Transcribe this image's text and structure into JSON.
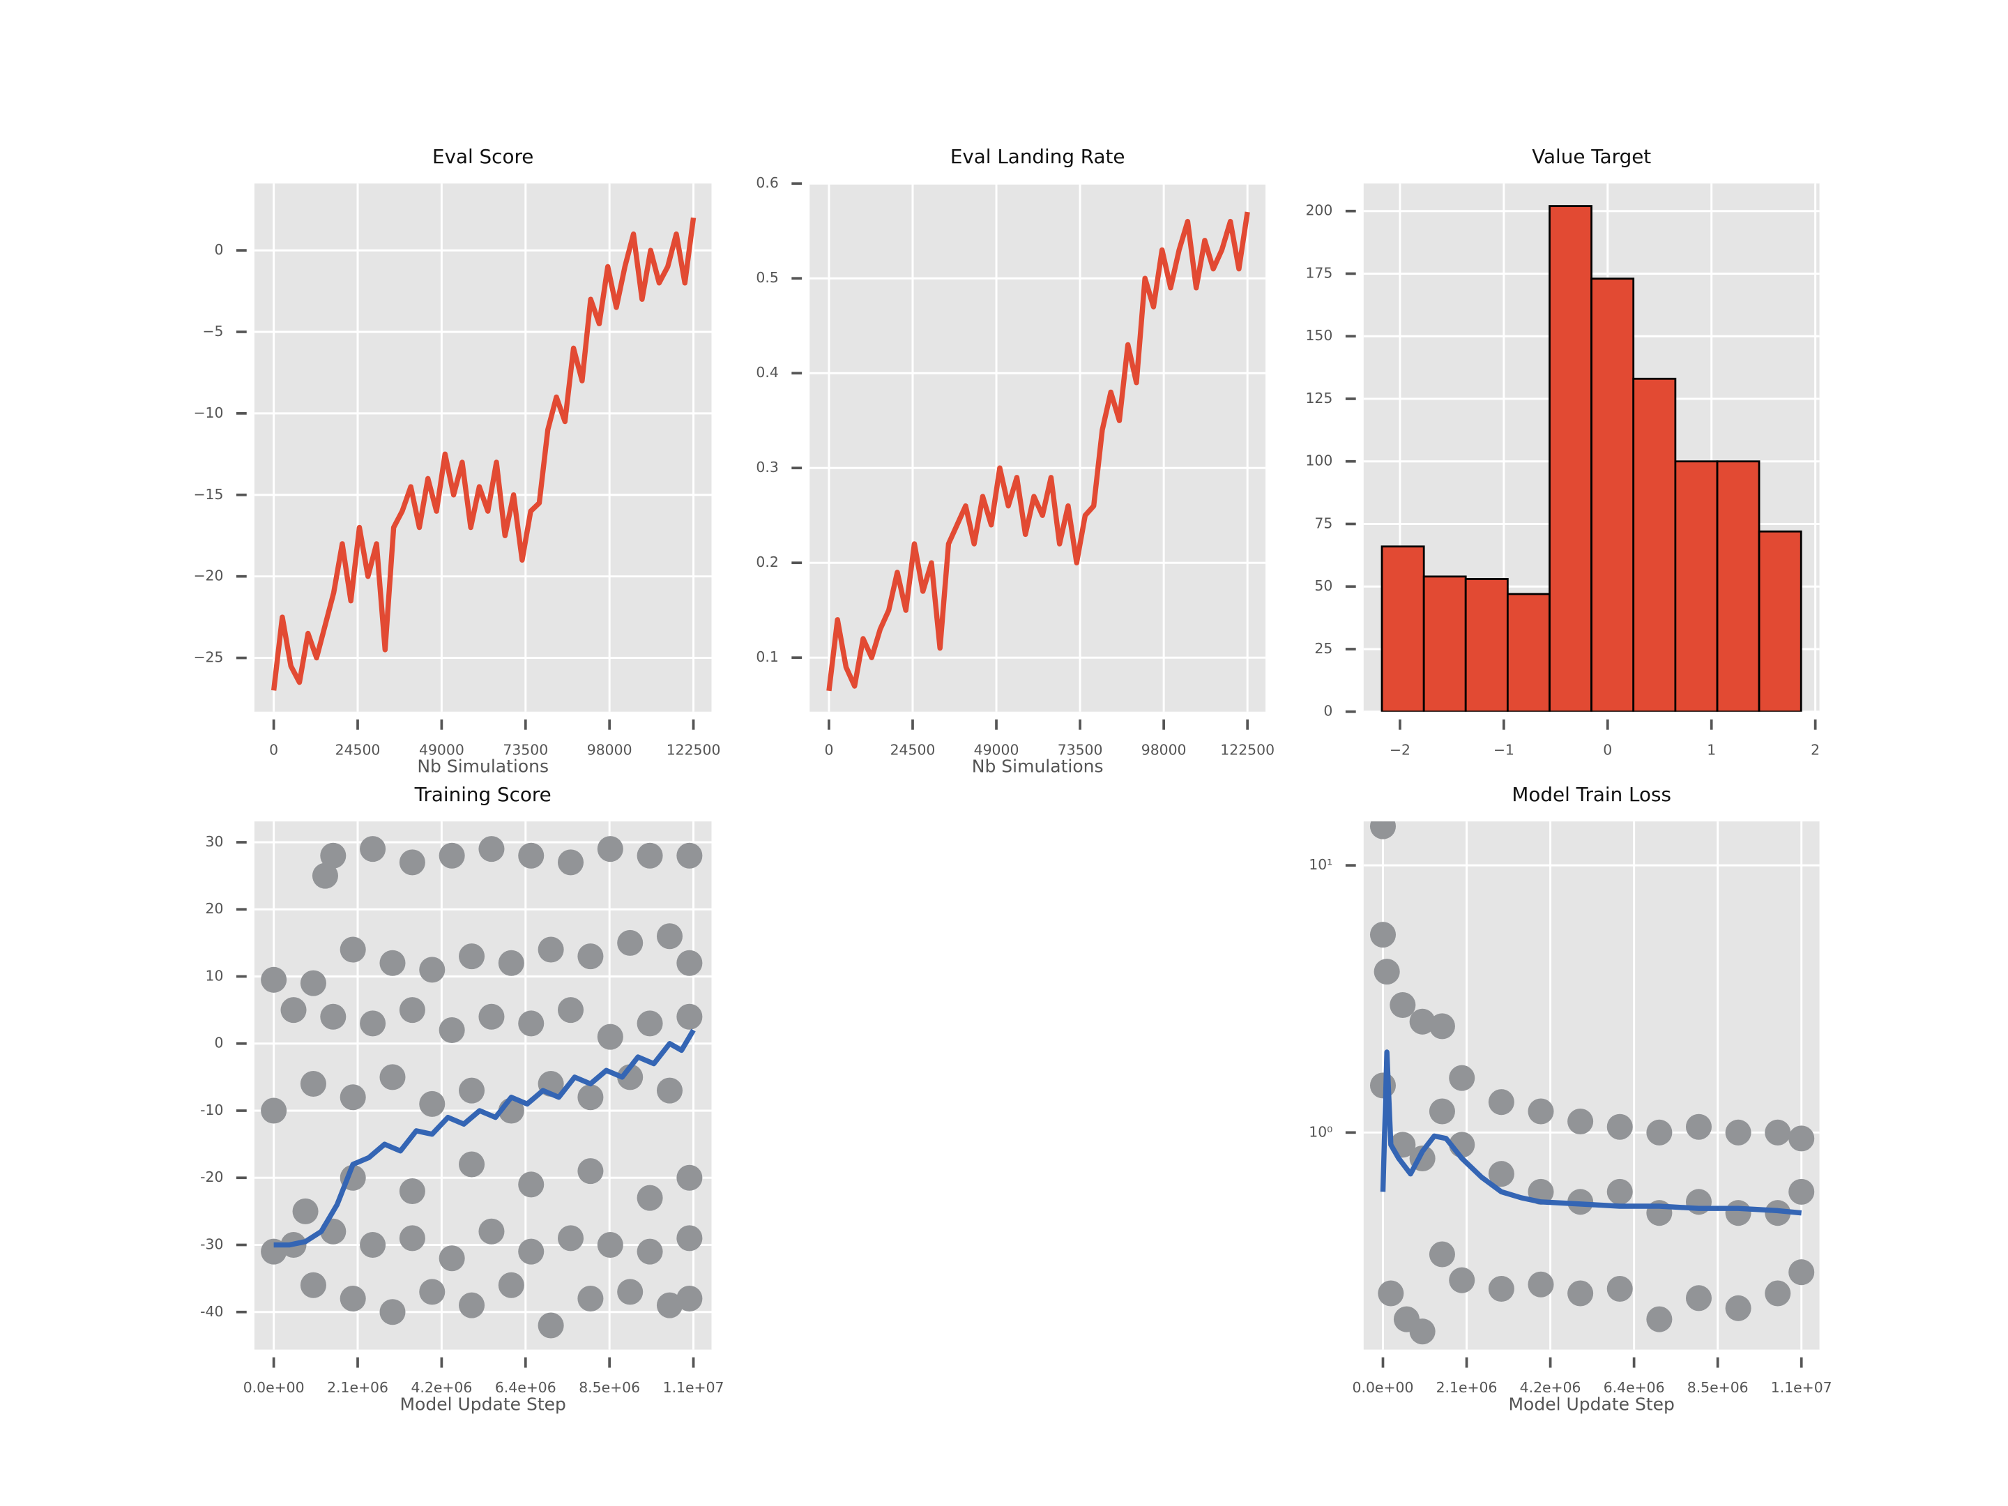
{
  "chart_data": [
    {
      "type": "line",
      "title": "Eval Score",
      "xlabel": "Nb Simulations",
      "color": "#e24a33",
      "grid": true,
      "x": [
        0,
        2500,
        5000,
        7500,
        10000,
        12500,
        15000,
        17500,
        20000,
        22500,
        25000,
        27500,
        30000,
        32500,
        35000,
        37500,
        40000,
        42500,
        45000,
        47500,
        50000,
        52500,
        55000,
        57500,
        60000,
        62500,
        65000,
        67500,
        70000,
        72500,
        75000,
        77500,
        80000,
        82500,
        85000,
        87500,
        90000,
        92500,
        95000,
        97500,
        100000,
        102500,
        105000,
        107500,
        110000,
        112500,
        115000,
        117500,
        120000,
        122500
      ],
      "values": [
        -27,
        -22.5,
        -25.5,
        -26.5,
        -23.5,
        -25,
        -23,
        -21,
        -18,
        -21.5,
        -17,
        -20,
        -18,
        -24.5,
        -17,
        -16,
        -14.5,
        -17,
        -14,
        -16,
        -12.5,
        -15,
        -13,
        -17,
        -14.5,
        -16,
        -13,
        -17.5,
        -15,
        -19,
        -16,
        -15.5,
        -11,
        -9,
        -10.5,
        -6,
        -8,
        -3,
        -4.5,
        -1,
        -3.5,
        -1,
        1,
        -3,
        0,
        -2,
        -1,
        1,
        -2,
        2
      ],
      "xlim": [
        -5650,
        127780
      ],
      "xticks": [
        0,
        24500,
        49000,
        73500,
        98000,
        122500
      ],
      "ylim": [
        -28.3,
        4.1
      ],
      "yticks": [
        {
          "value": -25,
          "label": "−25"
        },
        {
          "value": -20,
          "label": "−20"
        },
        {
          "value": -15,
          "label": "−15"
        },
        {
          "value": -10,
          "label": "−10"
        },
        {
          "value": -5,
          "label": "−5"
        },
        0
      ]
    },
    {
      "type": "line",
      "title": "Eval Landing Rate",
      "xlabel": "Nb Simulations",
      "color": "#e24a33",
      "grid": true,
      "x": [
        0,
        2500,
        5000,
        7500,
        10000,
        12500,
        15000,
        17500,
        20000,
        22500,
        25000,
        27500,
        30000,
        32500,
        35000,
        37500,
        40000,
        42500,
        45000,
        47500,
        50000,
        52500,
        55000,
        57500,
        60000,
        62500,
        65000,
        67500,
        70000,
        72500,
        75000,
        77500,
        80000,
        82500,
        85000,
        87500,
        90000,
        92500,
        95000,
        97500,
        100000,
        102500,
        105000,
        107500,
        110000,
        112500,
        115000,
        117500,
        120000,
        122500
      ],
      "values": [
        0.065,
        0.14,
        0.09,
        0.07,
        0.12,
        0.1,
        0.13,
        0.15,
        0.19,
        0.15,
        0.22,
        0.17,
        0.2,
        0.11,
        0.22,
        0.24,
        0.26,
        0.22,
        0.27,
        0.24,
        0.3,
        0.26,
        0.29,
        0.23,
        0.27,
        0.25,
        0.29,
        0.22,
        0.26,
        0.2,
        0.25,
        0.26,
        0.34,
        0.38,
        0.35,
        0.43,
        0.39,
        0.5,
        0.47,
        0.53,
        0.49,
        0.53,
        0.56,
        0.49,
        0.54,
        0.51,
        0.53,
        0.56,
        0.51,
        0.57
      ],
      "xlim": [
        -5650,
        127780
      ],
      "xticks": [
        0,
        24500,
        49000,
        73500,
        98000,
        122500
      ],
      "ylim": [
        0.043,
        0.6
      ],
      "yticks": [
        0.1,
        0.2,
        0.3,
        0.4,
        0.5,
        0.6
      ]
    },
    {
      "type": "histogram",
      "title": "Value Target",
      "color": "#e24a33",
      "edgecolor": "#000000",
      "grid": true,
      "bins": [
        -2.174,
        -1.77,
        -1.367,
        -0.963,
        -0.559,
        -0.156,
        0.248,
        0.652,
        1.056,
        1.459,
        1.863
      ],
      "values": [
        66,
        54,
        53,
        47,
        202,
        173,
        133,
        100,
        100,
        72
      ],
      "xlim": [
        -2.35,
        2.04
      ],
      "xticks": [
        {
          "value": -2,
          "label": "−2"
        },
        {
          "value": -1,
          "label": "−1"
        },
        0,
        1,
        2
      ],
      "ylim": [
        0,
        211
      ],
      "yticks": [
        0,
        25,
        50,
        75,
        100,
        125,
        150,
        175,
        200
      ]
    },
    {
      "type": "scatter",
      "title": "Training Score",
      "xlabel": "Model Update Step",
      "grid": true,
      "series": [
        {
          "type": "scatter",
          "color": "#929497",
          "x": [
            1500000,
            2500000,
            3500000,
            4500000,
            5500000,
            6500000,
            7500000,
            8500000,
            9500000,
            10500000,
            1300000,
            0,
            1000000,
            2000000,
            3000000,
            4000000,
            5000000,
            6000000,
            7000000,
            8000000,
            9000000,
            10000000,
            10500000,
            500000,
            1500000,
            2500000,
            3500000,
            4500000,
            5500000,
            6500000,
            7500000,
            8500000,
            9500000,
            10500000,
            0,
            1000000,
            2000000,
            3000000,
            4000000,
            5000000,
            6000000,
            7000000,
            8000000,
            9000000,
            10000000,
            800000,
            2000000,
            3500000,
            5000000,
            6500000,
            8000000,
            9500000,
            10500000,
            0,
            500000,
            1500000,
            2500000,
            3500000,
            4500000,
            5500000,
            6500000,
            7500000,
            8500000,
            9500000,
            10500000,
            1000000,
            2000000,
            3000000,
            4000000,
            5000000,
            6000000,
            7000000,
            8000000,
            9000000,
            10000000,
            10500000
          ],
          "values": [
            28,
            29,
            27,
            28,
            29,
            28,
            27,
            29,
            28,
            28,
            25,
            9.5,
            9,
            14,
            12,
            11,
            13,
            12,
            14,
            13,
            15,
            16,
            12,
            5,
            4,
            3,
            5,
            2,
            4,
            3,
            5,
            1,
            3,
            4,
            -10,
            -6,
            -8,
            -5,
            -9,
            -7,
            -10,
            -6,
            -8,
            -5,
            -7,
            -25,
            -20,
            -22,
            -18,
            -21,
            -19,
            -23,
            -20,
            -31,
            -30,
            -28,
            -30,
            -29,
            -32,
            -28,
            -31,
            -29,
            -30,
            -31,
            -29,
            -36,
            -38,
            -40,
            -37,
            -39,
            -36,
            -42,
            -38,
            -37,
            -39,
            -38
          ]
        },
        {
          "type": "line",
          "color": "#3465b4",
          "x": [
            0,
            400000,
            800000,
            1200000,
            1600000,
            2000000,
            2400000,
            2800000,
            3200000,
            3600000,
            4000000,
            4400000,
            4800000,
            5200000,
            5600000,
            6000000,
            6400000,
            6800000,
            7200000,
            7600000,
            8000000,
            8400000,
            8800000,
            9200000,
            9600000,
            10000000,
            10300000,
            10600000
          ],
          "values": [
            -30,
            -30,
            -29.5,
            -28,
            -24,
            -18,
            -17,
            -15,
            -16,
            -13,
            -13.5,
            -11,
            -12,
            -10,
            -11,
            -8,
            -9,
            -7,
            -8,
            -5,
            -6,
            -4,
            -5,
            -2,
            -3,
            0,
            -1,
            2
          ]
        }
      ],
      "xlim": [
        -489000,
        11057000
      ],
      "xticks": [
        {
          "value": 0,
          "label": "0.0e+00"
        },
        {
          "value": 2120000,
          "label": "2.1e+06"
        },
        {
          "value": 4240000,
          "label": "4.2e+06"
        },
        {
          "value": 6360000,
          "label": "6.4e+06"
        },
        {
          "value": 8480000,
          "label": "8.5e+06"
        },
        {
          "value": 10600000,
          "label": "1.1e+07"
        }
      ],
      "ylim": [
        -45.6,
        33.1
      ],
      "yticks": [
        -40,
        -30,
        -20,
        -10,
        0,
        10,
        20,
        30
      ]
    },
    {
      "type": "scatter",
      "title": "Model Train Loss",
      "xlabel": "Model Update Step",
      "grid": true,
      "log": true,
      "series": [
        {
          "type": "scatter",
          "color": "#929497",
          "x": [
            0,
            0,
            100000,
            500000,
            1000000,
            1500000,
            2000000,
            3000000,
            4000000,
            5000000,
            6000000,
            7000000,
            8000000,
            9000000,
            10000000,
            10600000,
            0,
            500000,
            1000000,
            1500000,
            2000000,
            3000000,
            4000000,
            5000000,
            6000000,
            7000000,
            8000000,
            9000000,
            10000000,
            10600000,
            200000,
            600000,
            1000000,
            1500000,
            2000000,
            3000000,
            4000000,
            5000000,
            6000000,
            7000000,
            8000000,
            9000000,
            10000000,
            10600000
          ],
          "values": [
            14,
            5.5,
            4,
            3,
            2.6,
            2.5,
            1.6,
            1.3,
            1.2,
            1.1,
            1.05,
            1,
            1.05,
            1,
            1,
            0.95,
            1.5,
            0.9,
            0.8,
            1.2,
            0.9,
            0.7,
            0.6,
            0.55,
            0.6,
            0.5,
            0.55,
            0.5,
            0.5,
            0.6,
            0.25,
            0.2,
            0.18,
            0.35,
            0.28,
            0.26,
            0.27,
            0.25,
            0.26,
            0.2,
            0.24,
            0.22,
            0.25,
            0.3
          ]
        },
        {
          "type": "line",
          "color": "#3465b4",
          "x": [
            0,
            100000,
            200000,
            400000,
            700000,
            1000000,
            1300000,
            1600000,
            2000000,
            2500000,
            3000000,
            3500000,
            4000000,
            5000000,
            6000000,
            7000000,
            8000000,
            9000000,
            10000000,
            10600000
          ],
          "values": [
            0.6,
            2,
            0.9,
            0.8,
            0.7,
            0.85,
            0.97,
            0.95,
            0.8,
            0.68,
            0.6,
            0.57,
            0.55,
            0.54,
            0.53,
            0.53,
            0.52,
            0.52,
            0.51,
            0.5
          ]
        }
      ],
      "xlim": [
        -489000,
        11057000
      ],
      "xticks": [
        {
          "value": 0,
          "label": "0.0e+00"
        },
        {
          "value": 2120000,
          "label": "2.1e+06"
        },
        {
          "value": 4240000,
          "label": "4.2e+06"
        },
        {
          "value": 6360000,
          "label": "6.4e+06"
        },
        {
          "value": 8480000,
          "label": "8.5e+06"
        },
        {
          "value": 10600000,
          "label": "1.1e+07"
        }
      ],
      "ylim": [
        0.154,
        14.6
      ],
      "yticks": [
        {
          "value": 1,
          "label": "10⁰"
        },
        {
          "value": 10,
          "label": "10¹"
        }
      ]
    }
  ]
}
